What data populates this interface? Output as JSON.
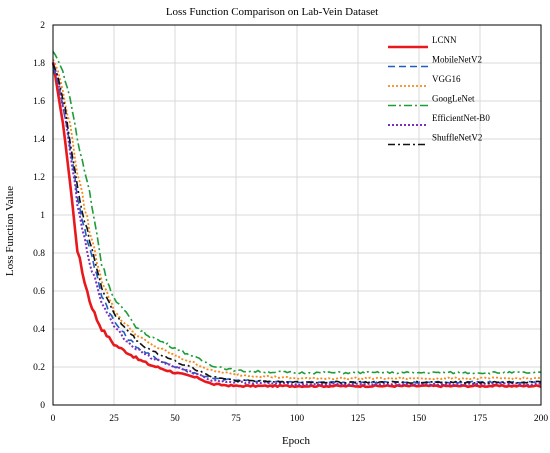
{
  "chart_data": {
    "type": "line",
    "title": "Loss Function Comparison on Lab-Vein Dataset",
    "xlabel": "Epoch",
    "ylabel": "Loss Function Value",
    "xlim": [
      0,
      200
    ],
    "ylim": [
      0,
      2
    ],
    "xticks": [
      0,
      25,
      50,
      75,
      100,
      125,
      150,
      175,
      200
    ],
    "yticks": [
      0,
      0.2,
      0.4,
      0.6,
      0.8,
      1,
      1.2,
      1.4,
      1.6,
      1.8,
      2
    ],
    "ytick_labels": [
      "0",
      "0.2",
      "0.4",
      "0.6",
      "0.8",
      "1",
      "1.2",
      "1.4",
      "1.6",
      "1.8",
      "2"
    ],
    "grid": true,
    "legend_position": "top-right",
    "x": [
      0,
      2,
      5,
      8,
      10,
      12,
      15,
      18,
      20,
      25,
      30,
      35,
      40,
      50,
      60,
      65,
      75,
      100,
      125,
      150,
      175,
      200
    ],
    "series": [
      {
        "name": "LCNN",
        "color": "#e8181c",
        "dash": "solid",
        "width": 2.6,
        "values": [
          1.8,
          1.65,
          1.4,
          1.05,
          0.82,
          0.7,
          0.55,
          0.45,
          0.4,
          0.32,
          0.28,
          0.24,
          0.21,
          0.17,
          0.14,
          0.11,
          0.1,
          0.1,
          0.1,
          0.1,
          0.1,
          0.1
        ]
      },
      {
        "name": "MobileNetV2",
        "color": "#1f5fbf",
        "dash": "7,4",
        "width": 1.6,
        "values": [
          1.78,
          1.7,
          1.52,
          1.28,
          1.1,
          0.98,
          0.82,
          0.68,
          0.58,
          0.44,
          0.36,
          0.3,
          0.26,
          0.2,
          0.16,
          0.14,
          0.13,
          0.12,
          0.12,
          0.12,
          0.12,
          0.12
        ]
      },
      {
        "name": "VGG16",
        "color": "#f28c1c",
        "dash": "2,2",
        "width": 1.8,
        "values": [
          1.82,
          1.76,
          1.6,
          1.4,
          1.22,
          1.1,
          0.92,
          0.76,
          0.66,
          0.5,
          0.42,
          0.36,
          0.32,
          0.26,
          0.21,
          0.18,
          0.16,
          0.14,
          0.14,
          0.14,
          0.14,
          0.14
        ]
      },
      {
        "name": "GoogLeNet",
        "color": "#1e9c3a",
        "dash": "8,3,2,3",
        "width": 1.6,
        "values": [
          1.86,
          1.82,
          1.72,
          1.55,
          1.4,
          1.28,
          1.12,
          0.9,
          0.74,
          0.56,
          0.48,
          0.4,
          0.36,
          0.3,
          0.24,
          0.21,
          0.18,
          0.17,
          0.17,
          0.17,
          0.17,
          0.17
        ]
      },
      {
        "name": "EfficientNet-B0",
        "color": "#7b2fbe",
        "dash": "2,2",
        "width": 2.0,
        "values": [
          1.8,
          1.72,
          1.5,
          1.25,
          1.05,
          0.92,
          0.76,
          0.62,
          0.54,
          0.42,
          0.34,
          0.29,
          0.25,
          0.2,
          0.16,
          0.13,
          0.12,
          0.11,
          0.11,
          0.11,
          0.11,
          0.11
        ]
      },
      {
        "name": "ShuffleNetV2",
        "color": "#111111",
        "dash": "7,3,2,3",
        "width": 1.6,
        "values": [
          1.8,
          1.73,
          1.55,
          1.32,
          1.15,
          1.02,
          0.86,
          0.72,
          0.62,
          0.48,
          0.4,
          0.33,
          0.29,
          0.23,
          0.18,
          0.15,
          0.13,
          0.12,
          0.12,
          0.12,
          0.12,
          0.12
        ]
      }
    ]
  }
}
